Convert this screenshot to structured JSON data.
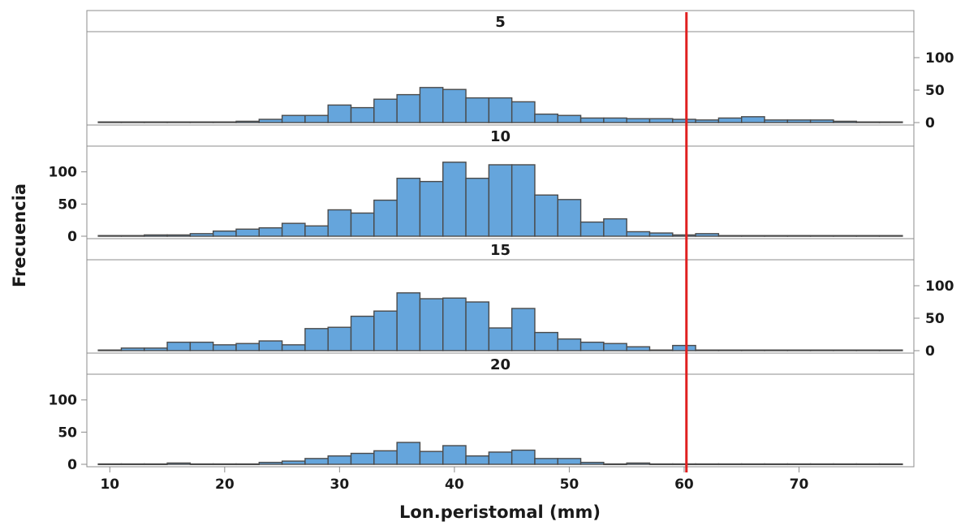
{
  "chart_data": {
    "type": "bar",
    "subtype": "paneled-histogram",
    "xlabel": "Lon.peristomal (mm)",
    "ylabel": "Frecuencia",
    "xlim": [
      8,
      80
    ],
    "ylim": [
      0,
      140
    ],
    "x_ticks": [
      10,
      20,
      30,
      40,
      50,
      60,
      70
    ],
    "y_ticks": [
      0,
      50,
      100
    ],
    "bin_width": 2,
    "bin_starts": [
      9,
      11,
      13,
      15,
      17,
      19,
      21,
      23,
      25,
      27,
      29,
      31,
      33,
      35,
      37,
      39,
      41,
      43,
      45,
      47,
      49,
      51,
      53,
      55,
      57,
      59,
      61,
      63,
      65,
      67,
      69,
      71,
      73,
      75,
      77
    ],
    "reference_line": {
      "x": 60.2,
      "color": "#e02020"
    },
    "bar_color": "#65a5dc",
    "bar_edge_color": "#4a4a4a",
    "panels": [
      {
        "label": "5",
        "y_axis_side": "right",
        "values": [
          1,
          1,
          1,
          1,
          1,
          1,
          2,
          5,
          11,
          11,
          27,
          23,
          36,
          43,
          54,
          51,
          38,
          38,
          32,
          13,
          11,
          7,
          7,
          6,
          6,
          5,
          4,
          7,
          9,
          4,
          4,
          4,
          2,
          1,
          1
        ]
      },
      {
        "label": "10",
        "y_axis_side": "left",
        "values": [
          1,
          1,
          2,
          2,
          4,
          8,
          11,
          13,
          20,
          16,
          41,
          36,
          56,
          90,
          85,
          115,
          90,
          111,
          111,
          64,
          57,
          22,
          27,
          7,
          5,
          2,
          4,
          1,
          1,
          1,
          1,
          1,
          1,
          1,
          1
        ]
      },
      {
        "label": "15",
        "y_axis_side": "right",
        "values": [
          1,
          4,
          4,
          13,
          13,
          9,
          11,
          15,
          9,
          34,
          36,
          53,
          61,
          89,
          80,
          81,
          75,
          35,
          65,
          28,
          18,
          13,
          11,
          6,
          1,
          8,
          1,
          1,
          1,
          1,
          1,
          1,
          1,
          1,
          1
        ]
      },
      {
        "label": "20",
        "y_axis_side": "left",
        "values": [
          0,
          0,
          0,
          2,
          0,
          0,
          0,
          3,
          5,
          9,
          13,
          17,
          21,
          34,
          20,
          29,
          13,
          19,
          22,
          9,
          9,
          3,
          0,
          2,
          0,
          0,
          0,
          0,
          0,
          0,
          0,
          0,
          0,
          0,
          0
        ]
      }
    ]
  }
}
